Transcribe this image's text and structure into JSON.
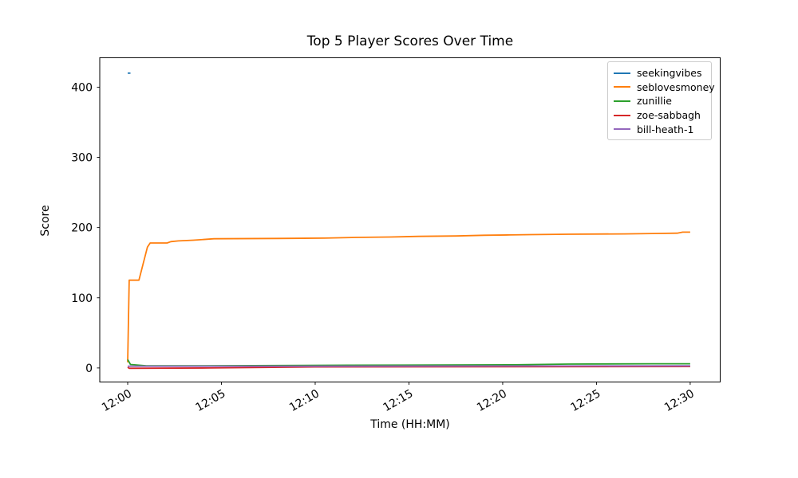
{
  "chart_data": {
    "type": "line",
    "title": "Top 5 Player Scores Over Time",
    "xlabel": "Time (HH:MM)",
    "ylabel": "Score",
    "grid": false,
    "legend_position": "upper right",
    "x_unit": "minutes after 12:00",
    "x_tick_minutes": [
      0,
      5,
      10,
      15,
      20,
      25,
      30
    ],
    "x_tick_labels": [
      "12:00",
      "12:05",
      "12:10",
      "12:15",
      "12:20",
      "12:25",
      "12:30"
    ],
    "x_tick_rotation_deg": 30,
    "y_ticks": [
      0,
      100,
      200,
      300,
      400
    ],
    "xlim_minutes": [
      -1.49,
      31.6
    ],
    "ylim": [
      -20,
      442
    ],
    "axis_color": "#000000",
    "series": [
      {
        "name": "seekingvibes",
        "color": "#1f77b4",
        "points": [
          [
            0,
            420
          ],
          [
            0.15,
            420
          ]
        ]
      },
      {
        "name": "seblovesmoney",
        "color": "#ff7f0e",
        "points": [
          [
            0,
            8
          ],
          [
            0.08,
            125
          ],
          [
            0.6,
            125
          ],
          [
            1.05,
            172
          ],
          [
            1.2,
            178
          ],
          [
            2.1,
            178
          ],
          [
            2.3,
            180
          ],
          [
            2.7,
            181
          ],
          [
            3.5,
            182
          ],
          [
            4.6,
            184
          ],
          [
            8,
            184.5
          ],
          [
            10.5,
            185
          ],
          [
            12.2,
            186
          ],
          [
            14,
            186.5
          ],
          [
            15.5,
            187.5
          ],
          [
            17.5,
            188
          ],
          [
            19,
            189
          ],
          [
            20.4,
            189.5
          ],
          [
            21.5,
            190
          ],
          [
            23.5,
            190.5
          ],
          [
            26.5,
            191
          ],
          [
            28,
            191.5
          ],
          [
            29.3,
            192
          ],
          [
            29.6,
            193.5
          ],
          [
            30,
            193.5
          ]
        ]
      },
      {
        "name": "zunillie",
        "color": "#2ca02c",
        "points": [
          [
            0,
            12
          ],
          [
            0.15,
            5
          ],
          [
            1,
            3
          ],
          [
            4,
            3
          ],
          [
            11.8,
            4
          ],
          [
            20.5,
            4.5
          ],
          [
            23.5,
            5.5
          ],
          [
            28,
            6
          ],
          [
            30,
            6
          ]
        ]
      },
      {
        "name": "zoe-sabbagh",
        "color": "#d62728",
        "points": [
          [
            0,
            1
          ],
          [
            0.08,
            -0.5
          ],
          [
            4.4,
            0
          ],
          [
            10,
            1.5
          ],
          [
            30,
            2
          ]
        ]
      },
      {
        "name": "bill-heath-1",
        "color": "#9467bd",
        "points": [
          [
            0,
            2.5
          ],
          [
            10,
            2.5
          ],
          [
            20,
            2.8
          ],
          [
            30,
            3
          ]
        ]
      }
    ]
  }
}
